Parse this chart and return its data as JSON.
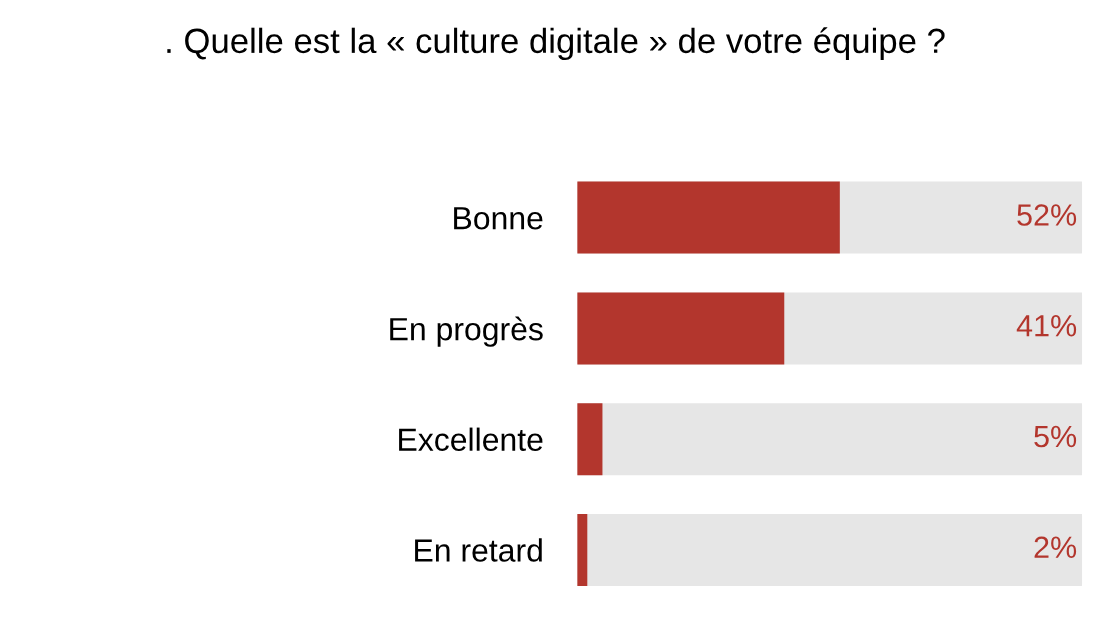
{
  "chart_data": {
    "type": "bar",
    "orientation": "horizontal",
    "title": ". Quelle est la « culture digitale » de votre équipe ?",
    "categories": [
      "Bonne",
      "En progrès",
      "Excellente",
      "En retard"
    ],
    "values": [
      52,
      41,
      5,
      2
    ],
    "value_labels": [
      "52%",
      "41%",
      "5%",
      "2%"
    ],
    "color": "#b3362d",
    "xlim": [
      0,
      100
    ],
    "tick_labels": "y",
    "grid": false,
    "legend": false
  }
}
